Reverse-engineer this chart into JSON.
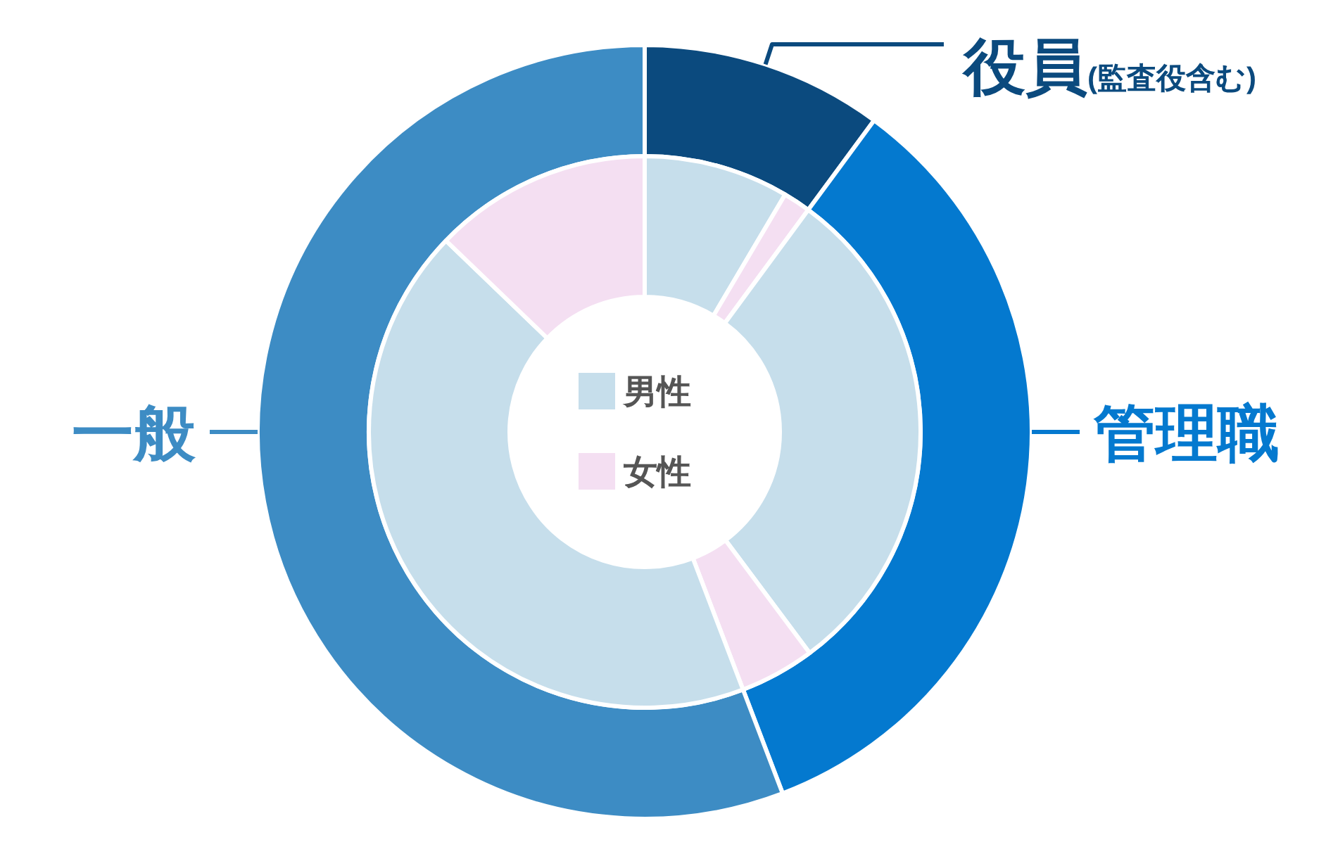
{
  "chart_data": [
    {
      "type": "donut",
      "categories": [
        "役員(監査役含む)",
        "管理職",
        "一般"
      ],
      "values": [
        10.1,
        34.1,
        55.8
      ],
      "colors": [
        "#0b4a7e",
        "#0479cf",
        "#3d8cc4"
      ]
    },
    {
      "type": "donut",
      "categories": [
        "男性",
        "女性",
        null,
        null,
        null,
        null
      ],
      "values": [
        8.5,
        1.6,
        29.7,
        4.4,
        43.0,
        12.8
      ],
      "colors": [
        "#c6deeb",
        "#f4dff2",
        "#c6deeb",
        "#f4dff2",
        "#c6deeb",
        "#f4dff2"
      ],
      "legend": "center"
    }
  ]
}
